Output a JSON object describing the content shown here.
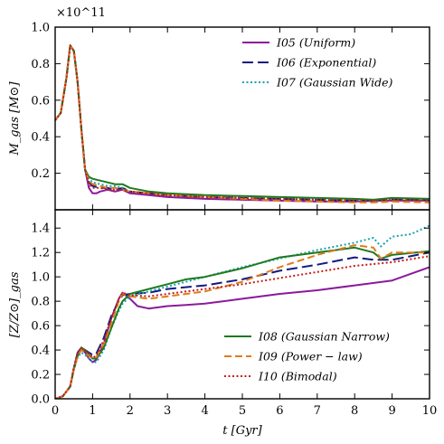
{
  "figure": {
    "x_axis_label": "t [Gyr]",
    "top_ylabel": "M_gas [M⊙]",
    "top_scale_label": "×10^11",
    "bottom_ylabel": "[Z/Z⊙]_gas"
  },
  "chart_data": [
    {
      "type": "line",
      "panel": "top",
      "ylabel": "M_gas [M⊙]",
      "y_scale_factor": "×10^11",
      "xlim": [
        0,
        10
      ],
      "ylim": [
        0.0,
        1.0
      ],
      "x_ticks": [
        "0",
        "1",
        "2",
        "3",
        "4",
        "5",
        "6",
        "7",
        "8",
        "9",
        "10"
      ],
      "y_ticks": [
        "0.2",
        "0.4",
        "0.6",
        "0.8",
        "1.0"
      ],
      "legend_position": "top-right",
      "series": [
        {
          "name": "I05 (Uniform)",
          "color": "#8b1a9b",
          "dash": "solid",
          "x": [
            0,
            0.15,
            0.3,
            0.4,
            0.5,
            0.6,
            0.7,
            0.8,
            0.9,
            1.0,
            1.1,
            1.2,
            1.4,
            1.6,
            1.8,
            2.0,
            2.5,
            3,
            4,
            5,
            6,
            7,
            8,
            8.5,
            9,
            10
          ],
          "y": [
            0.49,
            0.53,
            0.72,
            0.9,
            0.87,
            0.7,
            0.44,
            0.22,
            0.12,
            0.09,
            0.09,
            0.1,
            0.11,
            0.1,
            0.11,
            0.09,
            0.08,
            0.07,
            0.06,
            0.055,
            0.05,
            0.045,
            0.045,
            0.05,
            0.05,
            0.05
          ]
        },
        {
          "name": "I06 (Exponential)",
          "color": "#101a80",
          "dash": "longdash",
          "x": [
            0,
            0.15,
            0.3,
            0.4,
            0.5,
            0.6,
            0.7,
            0.8,
            0.9,
            1.0,
            1.2,
            1.4,
            1.6,
            1.8,
            2.0,
            2.5,
            3,
            4,
            5,
            6,
            7,
            8,
            8.5,
            9,
            10
          ],
          "y": [
            0.49,
            0.53,
            0.72,
            0.9,
            0.87,
            0.7,
            0.44,
            0.22,
            0.15,
            0.13,
            0.12,
            0.12,
            0.11,
            0.12,
            0.1,
            0.09,
            0.08,
            0.07,
            0.065,
            0.06,
            0.055,
            0.05,
            0.05,
            0.06,
            0.055
          ]
        },
        {
          "name": "I07 (Gaussian Wide)",
          "color": "#1a9fb5",
          "dash": "dotted",
          "x": [
            0,
            0.15,
            0.3,
            0.4,
            0.5,
            0.6,
            0.7,
            0.8,
            0.9,
            1.0,
            1.2,
            1.4,
            1.6,
            1.8,
            2.0,
            2.5,
            3,
            4,
            5,
            6,
            7,
            8,
            8.5,
            9,
            10
          ],
          "y": [
            0.49,
            0.53,
            0.72,
            0.9,
            0.87,
            0.7,
            0.44,
            0.22,
            0.17,
            0.15,
            0.14,
            0.13,
            0.13,
            0.12,
            0.1,
            0.09,
            0.08,
            0.07,
            0.065,
            0.06,
            0.055,
            0.05,
            0.045,
            0.055,
            0.05
          ]
        },
        {
          "name": "I08 (Gaussian Narrow)",
          "color": "#1e7a1e",
          "dash": "solid",
          "x": [
            0,
            0.15,
            0.3,
            0.4,
            0.5,
            0.6,
            0.7,
            0.8,
            0.9,
            1.0,
            1.2,
            1.4,
            1.6,
            1.8,
            2.0,
            2.5,
            3,
            4,
            5,
            6,
            7,
            8,
            8.5,
            9,
            10
          ],
          "y": [
            0.49,
            0.53,
            0.72,
            0.9,
            0.87,
            0.7,
            0.44,
            0.22,
            0.18,
            0.17,
            0.16,
            0.15,
            0.14,
            0.14,
            0.12,
            0.1,
            0.09,
            0.08,
            0.075,
            0.07,
            0.065,
            0.06,
            0.055,
            0.065,
            0.06
          ]
        },
        {
          "name": "I09 (Power − law)",
          "color": "#e07b1a",
          "dash": "dashed",
          "x": [
            0,
            0.15,
            0.3,
            0.4,
            0.5,
            0.6,
            0.7,
            0.8,
            0.9,
            1.0,
            1.2,
            1.4,
            1.6,
            1.8,
            2.0,
            2.5,
            3,
            4,
            5,
            6,
            7,
            8,
            8.5,
            9,
            10
          ],
          "y": [
            0.49,
            0.53,
            0.72,
            0.9,
            0.87,
            0.7,
            0.44,
            0.22,
            0.16,
            0.14,
            0.13,
            0.12,
            0.12,
            0.11,
            0.1,
            0.09,
            0.08,
            0.07,
            0.06,
            0.05,
            0.045,
            0.04,
            0.04,
            0.045,
            0.04
          ]
        },
        {
          "name": "I10 (Bimodal)",
          "color": "#c0201a",
          "dash": "dotted",
          "x": [
            0,
            0.15,
            0.3,
            0.4,
            0.5,
            0.6,
            0.7,
            0.8,
            0.9,
            1.0,
            1.2,
            1.4,
            1.6,
            1.8,
            2.0,
            2.5,
            3,
            4,
            5,
            6,
            7,
            8,
            8.5,
            9,
            10
          ],
          "y": [
            0.49,
            0.53,
            0.72,
            0.9,
            0.87,
            0.7,
            0.44,
            0.22,
            0.14,
            0.12,
            0.12,
            0.11,
            0.11,
            0.11,
            0.1,
            0.09,
            0.08,
            0.07,
            0.065,
            0.06,
            0.055,
            0.05,
            0.05,
            0.055,
            0.05
          ]
        }
      ]
    },
    {
      "type": "line",
      "panel": "bottom",
      "ylabel": "[Z/Z⊙]_gas",
      "xlabel": "t [Gyr]",
      "xlim": [
        0,
        10
      ],
      "ylim": [
        0.0,
        1.55
      ],
      "x_ticks": [
        "0",
        "1",
        "2",
        "3",
        "4",
        "5",
        "6",
        "7",
        "8",
        "9",
        "10"
      ],
      "y_ticks": [
        "0.0",
        "0.2",
        "0.4",
        "0.6",
        "0.8",
        "1.0",
        "1.2",
        "1.4"
      ],
      "legend_position": "bottom-right",
      "series": [
        {
          "name": "I05 (Uniform)",
          "color": "#8b1a9b",
          "dash": "solid",
          "x": [
            0,
            0.2,
            0.4,
            0.5,
            0.6,
            0.7,
            0.8,
            0.9,
            1.0,
            1.1,
            1.3,
            1.5,
            1.7,
            1.8,
            2,
            2.2,
            2.5,
            3,
            3.5,
            4,
            5,
            6,
            7,
            8,
            9,
            10
          ],
          "y": [
            0,
            0.02,
            0.1,
            0.25,
            0.38,
            0.42,
            0.38,
            0.33,
            0.3,
            0.32,
            0.45,
            0.66,
            0.82,
            0.87,
            0.82,
            0.76,
            0.74,
            0.76,
            0.77,
            0.78,
            0.82,
            0.86,
            0.89,
            0.93,
            0.97,
            1.08
          ]
        },
        {
          "name": "I06 (Exponential)",
          "color": "#101a80",
          "dash": "longdash",
          "x": [
            0,
            0.2,
            0.4,
            0.5,
            0.6,
            0.7,
            0.8,
            0.9,
            1.0,
            1.1,
            1.3,
            1.5,
            1.7,
            1.8,
            2,
            2.5,
            3,
            4,
            5,
            6,
            7,
            8,
            8.5,
            9,
            10
          ],
          "y": [
            0,
            0.02,
            0.1,
            0.25,
            0.36,
            0.41,
            0.4,
            0.38,
            0.36,
            0.37,
            0.5,
            0.68,
            0.8,
            0.85,
            0.86,
            0.87,
            0.9,
            0.93,
            0.98,
            1.05,
            1.1,
            1.16,
            1.14,
            1.14,
            1.2
          ]
        },
        {
          "name": "I07 (Gaussian Wide)",
          "color": "#1a9fb5",
          "dash": "dotted",
          "x": [
            0,
            0.2,
            0.4,
            0.5,
            0.6,
            0.7,
            0.8,
            0.9,
            1.0,
            1.1,
            1.3,
            1.5,
            1.7,
            1.8,
            2,
            2.5,
            3,
            4,
            5,
            6,
            7,
            8,
            8.5,
            8.7,
            9,
            9.5,
            10
          ],
          "y": [
            0,
            0.02,
            0.1,
            0.24,
            0.34,
            0.38,
            0.36,
            0.33,
            0.3,
            0.3,
            0.4,
            0.58,
            0.72,
            0.78,
            0.84,
            0.88,
            0.92,
            1.0,
            1.08,
            1.15,
            1.22,
            1.28,
            1.32,
            1.25,
            1.33,
            1.35,
            1.42
          ]
        },
        {
          "name": "I08 (Gaussian Narrow)",
          "color": "#1e7a1e",
          "dash": "solid",
          "x": [
            0,
            0.2,
            0.4,
            0.5,
            0.6,
            0.7,
            0.8,
            0.9,
            1.0,
            1.1,
            1.3,
            1.5,
            1.7,
            1.8,
            2,
            2.5,
            3,
            3.5,
            4,
            5,
            6,
            7,
            8,
            8.5,
            8.7,
            9,
            10
          ],
          "y": [
            0,
            0.02,
            0.1,
            0.24,
            0.35,
            0.42,
            0.4,
            0.36,
            0.33,
            0.33,
            0.42,
            0.58,
            0.74,
            0.8,
            0.86,
            0.9,
            0.94,
            0.98,
            1.0,
            1.07,
            1.16,
            1.2,
            1.24,
            1.2,
            1.15,
            1.18,
            1.21
          ]
        },
        {
          "name": "I09 (Power − law)",
          "color": "#e07b1a",
          "dash": "dashed",
          "x": [
            0,
            0.2,
            0.4,
            0.5,
            0.6,
            0.7,
            0.8,
            0.9,
            1.0,
            1.1,
            1.3,
            1.5,
            1.7,
            1.8,
            2,
            2.5,
            3,
            3.5,
            4,
            5,
            6,
            7,
            8,
            8.5,
            8.7,
            9,
            10
          ],
          "y": [
            0,
            0.02,
            0.1,
            0.24,
            0.35,
            0.4,
            0.38,
            0.35,
            0.34,
            0.34,
            0.45,
            0.62,
            0.8,
            0.86,
            0.84,
            0.82,
            0.84,
            0.86,
            0.88,
            0.96,
            1.08,
            1.18,
            1.26,
            1.24,
            1.15,
            1.2,
            1.2
          ]
        },
        {
          "name": "I10 (Bimodal)",
          "color": "#c0201a",
          "dash": "dotted",
          "x": [
            0,
            0.2,
            0.4,
            0.5,
            0.6,
            0.7,
            0.8,
            0.9,
            1.0,
            1.1,
            1.3,
            1.5,
            1.7,
            1.8,
            2,
            2.5,
            3,
            4,
            5,
            6,
            7,
            8,
            9,
            10
          ],
          "y": [
            0,
            0.02,
            0.1,
            0.26,
            0.38,
            0.42,
            0.4,
            0.37,
            0.34,
            0.35,
            0.48,
            0.66,
            0.82,
            0.87,
            0.85,
            0.84,
            0.86,
            0.9,
            0.94,
            0.99,
            1.04,
            1.09,
            1.12,
            1.17
          ]
        }
      ]
    }
  ]
}
